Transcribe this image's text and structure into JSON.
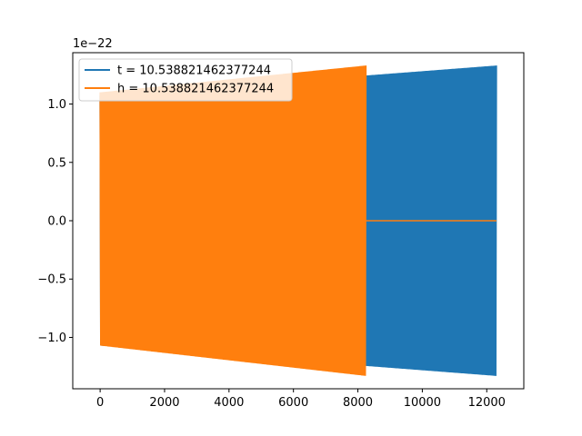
{
  "chart_data": {
    "type": "line",
    "title": "",
    "xlabel": "",
    "ylabel": "",
    "offset_label": "1e−22",
    "xlim": [
      -850,
      13150
    ],
    "ylim": [
      -1.44,
      1.44
    ],
    "x_ticks": [
      0,
      2000,
      4000,
      6000,
      8000,
      10000,
      12000
    ],
    "y_ticks": [
      -1.0,
      -0.5,
      0.0,
      0.5,
      1.0
    ],
    "x_tick_labels": [
      "0",
      "2000",
      "4000",
      "6000",
      "8000",
      "10000",
      "12000"
    ],
    "y_tick_labels": [
      "−1.0",
      "−0.5",
      "0.0",
      "0.5",
      "1.0"
    ],
    "grid": false,
    "legend_position": "top-left",
    "series": [
      {
        "name": "t = 10.538821462377244",
        "color": "#1f77b4",
        "style": "dense-oscillation",
        "x_range": [
          0,
          12300
        ],
        "envelope_x": [
          0,
          12300
        ],
        "envelope_upper": [
          1.07,
          1.33
        ],
        "envelope_lower": [
          -1.07,
          -1.33
        ],
        "tail_after_x": null
      },
      {
        "name": "h = 10.538821462377244",
        "color": "#ff7f0e",
        "style": "dense-oscillation",
        "x_range": [
          0,
          8250
        ],
        "envelope_x": [
          0,
          8250
        ],
        "envelope_upper": [
          1.1,
          1.33
        ],
        "envelope_lower": [
          -1.07,
          -1.33
        ],
        "tail_after_x": [
          8250,
          12300
        ],
        "tail_value": 0.0
      }
    ]
  }
}
